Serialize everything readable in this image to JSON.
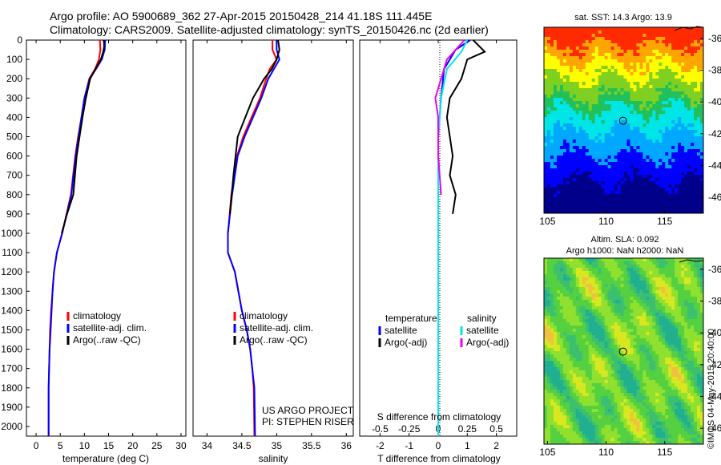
{
  "title": {
    "line1": "Argo profile: AO 5900689_362 27-Apr-2015 20150428_214 41.18S 111.445E",
    "line2": "Climatology: CARS2009. Satellite-adjusted climatology: synTS_20150426.nc (2d earlier)"
  },
  "colors": {
    "climatology": "#ff0000",
    "satellite": "#0000ff",
    "argo": "#000000",
    "salinity_satellite": "#00e5ee",
    "salinity_argo": "#ee00ee"
  },
  "chart_data": [
    {
      "type": "line",
      "name": "temperature-profile",
      "xlabel": "temperature (deg C)",
      "xticks": [
        0,
        5,
        10,
        15,
        20,
        25,
        30
      ],
      "xlim": [
        -2,
        31
      ],
      "ylim": [
        0,
        2050
      ],
      "yticks": [
        0,
        100,
        200,
        300,
        400,
        500,
        600,
        700,
        800,
        900,
        1000,
        1100,
        1200,
        1300,
        1400,
        1500,
        1600,
        1700,
        1800,
        1900,
        2000
      ],
      "legend": [
        "climatology",
        "satellite-adj. clim.",
        "Argo(..raw -QC)"
      ],
      "series": [
        {
          "name": "climatology",
          "color": "#ff0000",
          "x": [
            13.2,
            13.3,
            13.0,
            12.2,
            11.0,
            10.0,
            9.4,
            8.7,
            8.1,
            7.2,
            5.4,
            4.3,
            3.7,
            3.4,
            3.1,
            2.9,
            2.8,
            2.7,
            2.6,
            2.6
          ],
          "y": [
            0,
            50,
            100,
            150,
            200,
            300,
            400,
            500,
            600,
            800,
            1000,
            1100,
            1200,
            1300,
            1400,
            1500,
            1600,
            1700,
            1800,
            2050
          ]
        },
        {
          "name": "satellite-adj. clim.",
          "color": "#0000ff",
          "x": [
            14.3,
            14.2,
            13.6,
            12.4,
            11.1,
            10.0,
            9.4,
            8.8,
            8.2,
            7.3,
            5.4,
            4.3,
            3.7,
            3.4,
            3.2,
            3.0,
            2.8,
            2.7,
            2.6,
            2.6
          ],
          "y": [
            0,
            50,
            100,
            150,
            200,
            300,
            400,
            500,
            600,
            800,
            1000,
            1100,
            1200,
            1300,
            1400,
            1500,
            1600,
            1700,
            1800,
            2050
          ]
        },
        {
          "name": "Argo(..raw -QC)",
          "color": "#000000",
          "x": [
            14.0,
            14.1,
            13.9,
            13.4,
            12.3,
            11.2,
            10.3,
            9.6,
            9.0,
            8.4,
            7.7,
            6.4,
            5.3
          ],
          "y": [
            0,
            30,
            60,
            100,
            150,
            200,
            300,
            400,
            500,
            600,
            800,
            900,
            1000
          ]
        }
      ],
      "footer": [
        "US ARGO PROJECT",
        "PI: STEPHEN RISER"
      ]
    },
    {
      "type": "line",
      "name": "salinity-profile",
      "xlabel": "salinity",
      "xticks": [
        34,
        34.5,
        35,
        35.5,
        36
      ],
      "xlim": [
        33.8,
        36.1
      ],
      "ylim": [
        0,
        2050
      ],
      "legend": [
        "climatology",
        "satellite-adj. clim.",
        "Argo(..raw -QC)"
      ],
      "series": [
        {
          "name": "climatology",
          "color": "#ff0000",
          "x": [
            34.94,
            34.94,
            35.0,
            34.9,
            34.85,
            34.76,
            34.64,
            34.52,
            34.43,
            34.35,
            34.3,
            34.3,
            34.4,
            34.5,
            34.57,
            34.62,
            34.65,
            34.67,
            34.68
          ],
          "y": [
            0,
            50,
            100,
            150,
            200,
            300,
            400,
            500,
            600,
            800,
            1000,
            1100,
            1200,
            1400,
            1500,
            1600,
            1700,
            1800,
            2050
          ]
        },
        {
          "name": "satellite-adj. clim.",
          "color": "#0000ff",
          "x": [
            35.0,
            35.0,
            35.04,
            34.96,
            34.88,
            34.78,
            34.66,
            34.54,
            34.44,
            34.36,
            34.3,
            34.3,
            34.4,
            34.5,
            34.57,
            34.62,
            34.65,
            34.68,
            34.69
          ],
          "y": [
            0,
            50,
            100,
            150,
            200,
            300,
            400,
            500,
            600,
            800,
            1000,
            1100,
            1200,
            1400,
            1500,
            1600,
            1700,
            1800,
            2050
          ]
        },
        {
          "name": "Argo(..raw -QC)",
          "color": "#000000",
          "x": [
            35.02,
            35.04,
            35.0,
            34.93,
            34.82,
            34.66,
            34.55,
            34.44,
            34.38,
            34.33
          ],
          "y": [
            0,
            50,
            100,
            150,
            200,
            300,
            400,
            500,
            700,
            900
          ]
        }
      ]
    },
    {
      "type": "line",
      "name": "difference-from-climatology",
      "xlabel": "T difference from climatology",
      "top_label": "S difference from climatology",
      "xticks": [
        -2,
        -1,
        0,
        1,
        2
      ],
      "top_ticks": [
        "-0.5",
        "-0.25",
        "0",
        "0.25",
        "0.5"
      ],
      "xlim": [
        -2.7,
        2.7
      ],
      "ylim": [
        0,
        2050
      ],
      "legend_headers": [
        "temperature",
        "salinity"
      ],
      "legend": [
        "satellite",
        "Argo(-adj)",
        "satellite",
        "Argo(-adj)"
      ],
      "series": [
        {
          "name": "satellite",
          "color": "#0000ff",
          "x": [
            1.1,
            0.6,
            0.2,
            0.1,
            0.0,
            0.0,
            0.0,
            0.0,
            0.0,
            0.0
          ],
          "y": [
            0,
            50,
            150,
            300,
            500,
            800,
            1100,
            1400,
            1700,
            2050
          ]
        },
        {
          "name": "Argo(-adj)",
          "color": "#000000",
          "x": [
            1.2,
            1.6,
            1.0,
            0.8,
            0.4,
            0.3,
            0.4,
            0.5,
            0.4,
            0.6,
            0.5
          ],
          "y": [
            0,
            60,
            100,
            200,
            300,
            400,
            500,
            600,
            700,
            800,
            900
          ]
        },
        {
          "name": "satellite",
          "color": "#00e5ee",
          "x": [
            1.0,
            0.8,
            0.3,
            0.1,
            0.0,
            0.0,
            0.0,
            0.0,
            0.0,
            0.0
          ],
          "y": [
            0,
            60,
            150,
            300,
            500,
            800,
            1100,
            1400,
            1700,
            2050
          ]
        },
        {
          "name": "Argo(-adj)",
          "color": "#ee00ee",
          "x": [
            0.9,
            0.3,
            -0.1,
            0.0,
            0.0,
            0.1
          ],
          "y": [
            0,
            100,
            300,
            400,
            600,
            800
          ]
        }
      ]
    },
    {
      "type": "heatmap",
      "name": "sst-map",
      "title": "sat. SST: 14.3 Argo: 13.9",
      "xticks": [
        105,
        110,
        115
      ],
      "yticks": [
        -36,
        -38,
        -40,
        -42,
        -44,
        -46
      ],
      "xlim": [
        104.7,
        118.3
      ],
      "ylim": [
        -47,
        -35.3
      ],
      "marker": {
        "lon": 111.445,
        "lat": -41.18
      }
    },
    {
      "type": "heatmap",
      "name": "sla-map",
      "title_line1": "Altim. SLA: 0.092",
      "title_line2": "Argo h1000: NaN h2000: NaN",
      "xticks": [
        105,
        110,
        115
      ],
      "yticks": [
        -36,
        -38,
        -40,
        -42,
        -44,
        -46
      ],
      "xlim": [
        104.7,
        118.3
      ],
      "ylim": [
        -47,
        -35.3
      ],
      "marker": {
        "lon": 111.445,
        "lat": -41.18
      }
    }
  ],
  "watermark": "©IMOS 04-May-2015 20:40:00"
}
